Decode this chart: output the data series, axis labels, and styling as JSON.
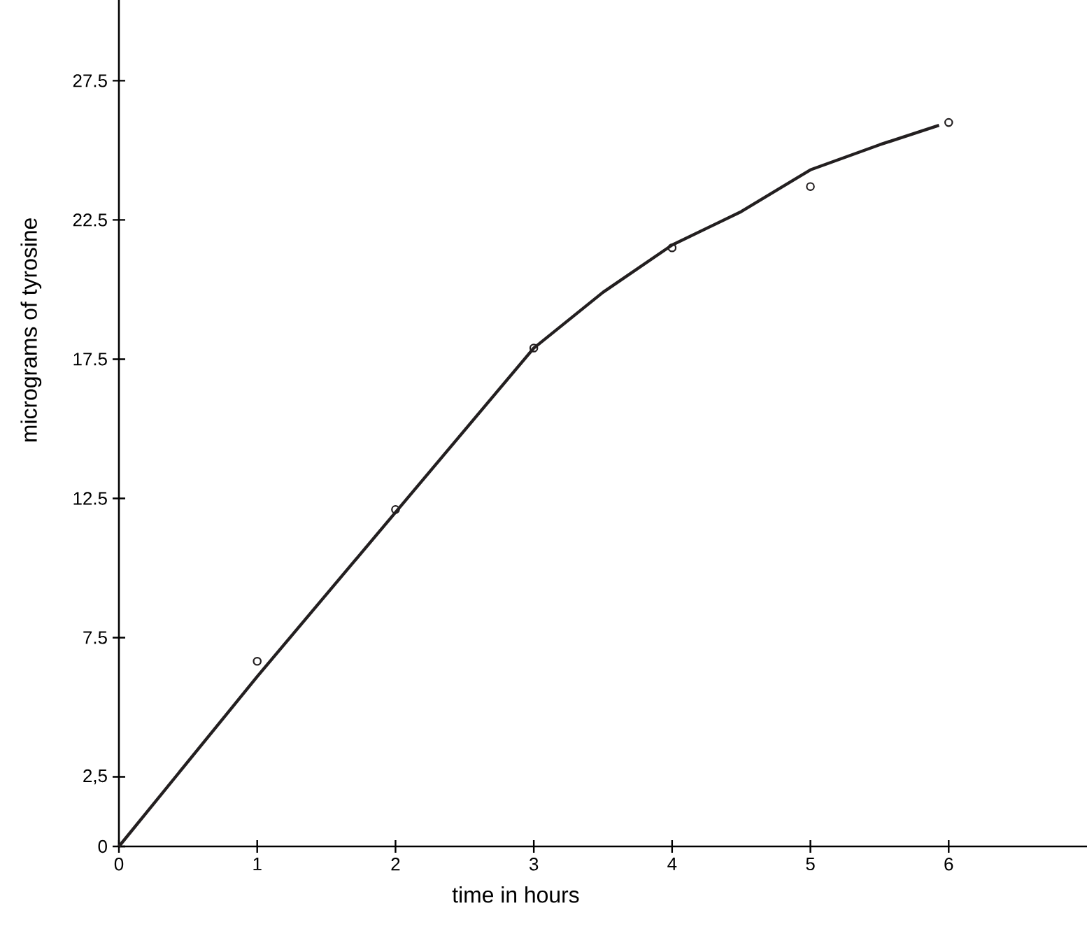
{
  "chart_data": {
    "type": "scatter",
    "xlabel": "time in hours",
    "ylabel": "micrograms of tyrosine",
    "xlim": [
      0,
      7
    ],
    "ylim": [
      0,
      30.4
    ],
    "xticks": [
      0,
      1,
      2,
      3,
      4,
      5,
      6
    ],
    "yticks": [
      0,
      {
        "value": 2.5,
        "label": "2,5"
      },
      7.5,
      12.5,
      17.5,
      22.5,
      27.5
    ],
    "grid": false,
    "series": [
      {
        "color": "#231f20",
        "marker": "circle",
        "x": [
          1,
          2,
          3,
          4,
          5,
          6
        ],
        "values": [
          6.65,
          12.1,
          17.9,
          21.5,
          23.7,
          26.0
        ]
      },
      {
        "type": "line",
        "color": "#231f20",
        "marker": "none",
        "line_style": "solid",
        "x": [
          0,
          1,
          2,
          3,
          3.5,
          4,
          4.5,
          5,
          5.5,
          5.93
        ],
        "values": [
          0,
          6.1,
          12.0,
          17.9,
          19.9,
          21.6,
          22.8,
          24.3,
          25.2,
          25.9
        ]
      }
    ]
  }
}
